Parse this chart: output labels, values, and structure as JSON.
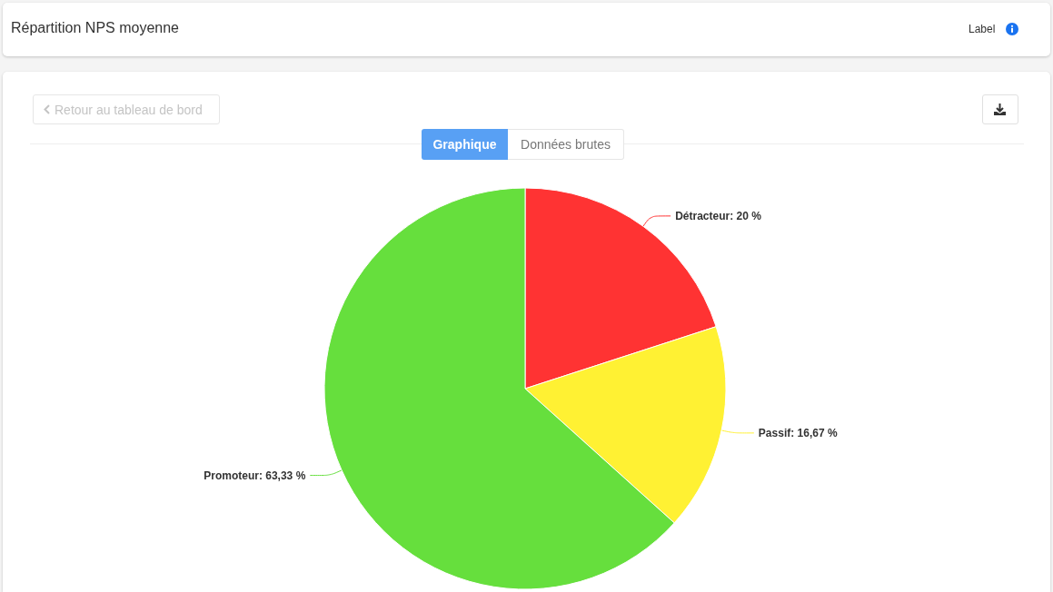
{
  "chart_data": {
    "type": "pie",
    "title": "Répartition NPS moyenne",
    "categories": [
      "Détracteur",
      "Passif",
      "Promoteur"
    ],
    "values": [
      20,
      16.67,
      63.33
    ],
    "colors": [
      "#ff3333",
      "#fff133",
      "#66df3d"
    ],
    "value_labels": [
      "20 %",
      "16,67 %",
      "63,33 %"
    ],
    "annotations": [
      "Label",
      "Retour au tableau de bord",
      "Graphique",
      "Données brutes"
    ]
  }
}
